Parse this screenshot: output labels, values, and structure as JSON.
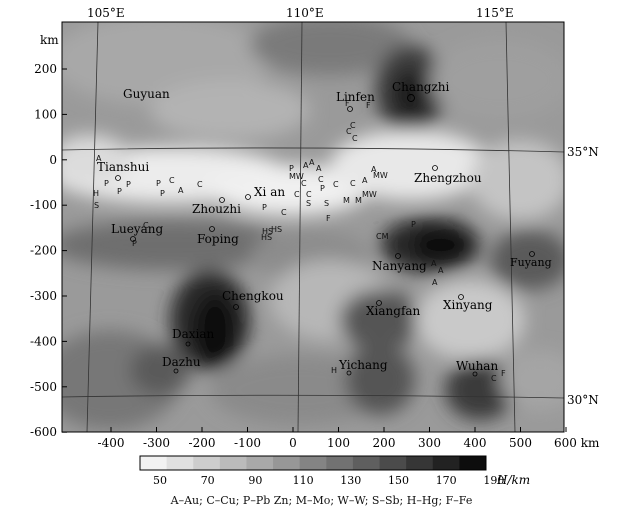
{
  "map": {
    "x_unit": "km",
    "y_unit": "km",
    "x_ticks": [
      "-400",
      "-300",
      "-200",
      "-100",
      "0",
      "100",
      "200",
      "300",
      "400",
      "500",
      "600 km"
    ],
    "y_ticks": [
      "200",
      "100",
      "0",
      "-100",
      "-200",
      "-300",
      "-400",
      "-500",
      "-600"
    ],
    "longitude_labels": [
      "105°E",
      "110°E",
      "115°E"
    ],
    "latitude_labels": [
      "35°N",
      "30°N"
    ],
    "cities": [
      {
        "name": "Guyuan"
      },
      {
        "name": "Linfen"
      },
      {
        "name": "Changzhi"
      },
      {
        "name": "Tianshui"
      },
      {
        "name": "Zhengzhou"
      },
      {
        "name": "Xi an"
      },
      {
        "name": "Zhouzhi"
      },
      {
        "name": "Lueyang"
      },
      {
        "name": "Foping"
      },
      {
        "name": "Nanyang"
      },
      {
        "name": "Fuyang"
      },
      {
        "name": "Chengkou"
      },
      {
        "name": "Xiangfan"
      },
      {
        "name": "Xinyang"
      },
      {
        "name": "Daxian"
      },
      {
        "name": "Dazhu"
      },
      {
        "name": "Yichang"
      },
      {
        "name": "Wuhan"
      }
    ],
    "deposit_symbols": [
      "A",
      "C",
      "P",
      "M",
      "W",
      "S",
      "H",
      "F",
      "HS",
      "MW",
      "CM"
    ]
  },
  "legend": {
    "values": [
      "50",
      "70",
      "90",
      "110",
      "130",
      "150",
      "170",
      "190"
    ],
    "unit_label": "H/km",
    "caption": "A–Au; C–Cu; P–Pb Zn; M–Mo; W–W; S–Sb; H–Hg; F–Fe",
    "colors": [
      "#f2f2f2",
      "#e0e0e0",
      "#cdcdcd",
      "#bbbbbb",
      "#a9a9a9",
      "#979797",
      "#848484",
      "#727272",
      "#5f5f5f",
      "#4b4b4b",
      "#363636",
      "#222222",
      "#0d0d0d"
    ]
  }
}
